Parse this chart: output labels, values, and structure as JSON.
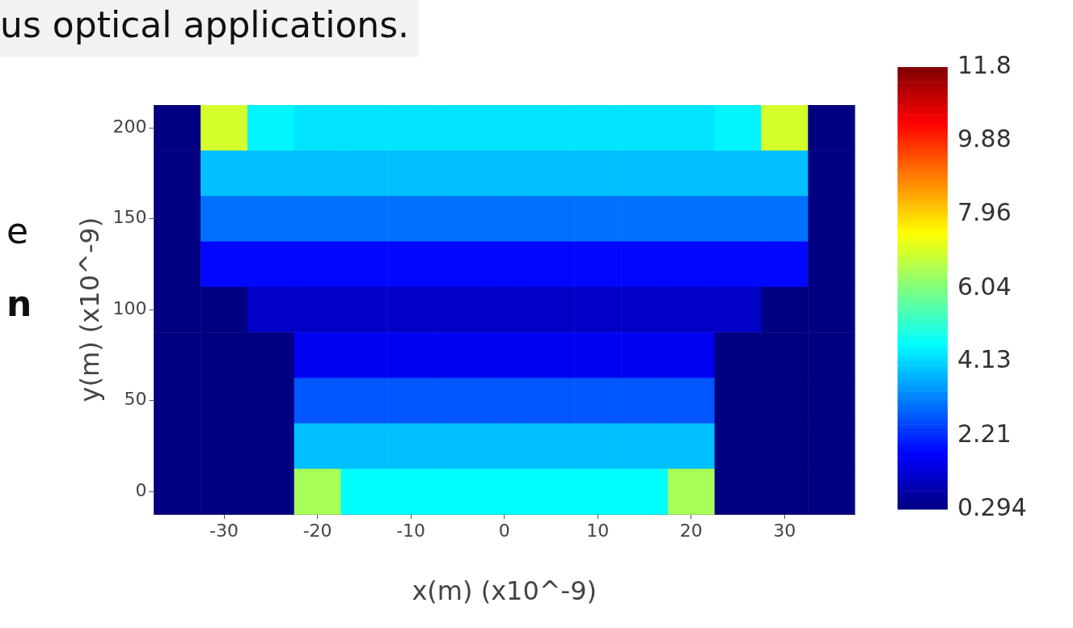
{
  "chart_data": {
    "type": "heatmap",
    "xlabel": "x(m) (x10^-9)",
    "ylabel": "y(m) (x10^-9)",
    "annotations": [
      "us optical applications.",
      "e",
      "n"
    ],
    "categories": [
      null,
      "-30",
      null,
      "-20",
      null,
      "-10",
      null,
      "0",
      null,
      "10",
      null,
      "20",
      null,
      "30",
      null
    ],
    "y_categories": [
      "200",
      null,
      "150",
      null,
      "100",
      null,
      "50",
      null,
      "0"
    ],
    "cells": [
      [
        0.294,
        7.0,
        4.5,
        4.3,
        4.3,
        4.3,
        4.3,
        4.3,
        4.3,
        4.3,
        4.3,
        4.3,
        4.5,
        7.0,
        0.294
      ],
      [
        0.294,
        3.9,
        3.9,
        3.9,
        3.9,
        3.9,
        3.9,
        3.9,
        3.9,
        3.9,
        3.9,
        3.9,
        3.9,
        3.9,
        0.294
      ],
      [
        0.294,
        3.0,
        3.0,
        3.0,
        3.0,
        3.0,
        3.0,
        3.0,
        3.0,
        3.0,
        3.0,
        3.0,
        3.0,
        3.0,
        0.294
      ],
      [
        0.294,
        1.8,
        1.8,
        1.8,
        1.8,
        1.8,
        1.8,
        1.8,
        1.8,
        1.8,
        1.8,
        1.8,
        1.8,
        1.8,
        0.294
      ],
      [
        0.294,
        0.294,
        1.1,
        1.1,
        1.1,
        1.1,
        1.1,
        1.1,
        1.1,
        1.1,
        1.1,
        1.1,
        1.1,
        0.294,
        0.294
      ],
      [
        0.294,
        0.294,
        0.294,
        1.6,
        1.6,
        1.6,
        1.6,
        1.6,
        1.6,
        1.6,
        1.6,
        1.6,
        0.294,
        0.294,
        0.294
      ],
      [
        0.294,
        0.294,
        0.294,
        2.7,
        2.7,
        2.7,
        2.7,
        2.7,
        2.7,
        2.7,
        2.7,
        2.7,
        0.294,
        0.294,
        0.294
      ],
      [
        0.294,
        0.294,
        0.294,
        3.9,
        3.9,
        3.9,
        3.9,
        3.9,
        3.9,
        3.9,
        3.9,
        3.9,
        0.294,
        0.294,
        0.294
      ],
      [
        0.294,
        0.294,
        0.294,
        6.5,
        4.6,
        4.6,
        4.6,
        4.6,
        4.6,
        4.6,
        4.6,
        6.5,
        0.294,
        0.294,
        0.294
      ]
    ],
    "clim": [
      0.294,
      11.8
    ],
    "cticks": [
      {
        "value": 0.294,
        "label": "0.294"
      },
      2.21,
      4.13,
      6.04,
      7.96,
      9.88,
      11.8
    ]
  }
}
